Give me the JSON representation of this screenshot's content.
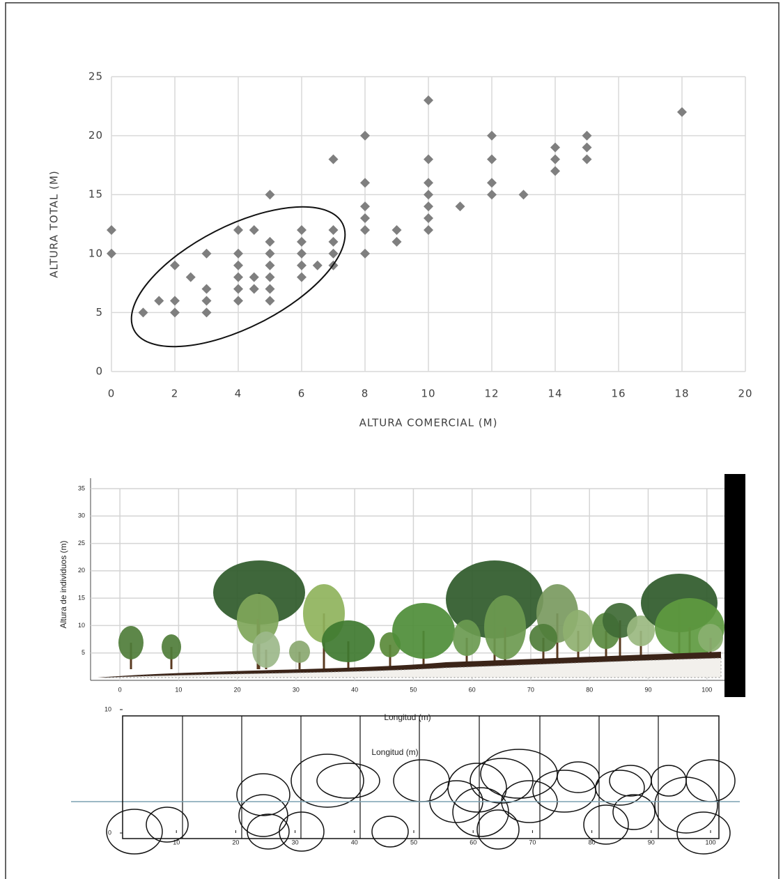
{
  "chart_data": [
    {
      "type": "scatter",
      "x_label": "ALTURA COMERCIAL (M)",
      "y_label": "ALTURA TOTAL (M)",
      "x": [
        0,
        0,
        1,
        1.5,
        2,
        2,
        2,
        2.5,
        3,
        3,
        3,
        3,
        4,
        4,
        4,
        4,
        4,
        4,
        4.5,
        4.5,
        4.5,
        5,
        5,
        5,
        5,
        5,
        5,
        5,
        6,
        6,
        6,
        6,
        6,
        6.5,
        7,
        7,
        7,
        7,
        7,
        8,
        8,
        8,
        8,
        8,
        8,
        9,
        9,
        10,
        10,
        10,
        10,
        10,
        10,
        10,
        11,
        12,
        12,
        12,
        12,
        13,
        14,
        14,
        14,
        15,
        15,
        15,
        18
      ],
      "y": [
        12,
        10,
        5,
        6,
        9,
        6,
        5,
        8,
        10,
        7,
        6,
        5,
        12,
        10,
        9,
        8,
        7,
        6,
        12,
        8,
        7,
        15,
        11,
        10,
        9,
        8,
        7,
        6,
        12,
        11,
        10,
        9,
        8,
        9,
        18,
        12,
        11,
        10,
        9,
        20,
        16,
        14,
        13,
        12,
        10,
        12,
        11,
        23,
        18,
        16,
        15,
        14,
        13,
        12,
        14,
        20,
        18,
        16,
        15,
        15,
        19,
        18,
        17,
        20,
        19,
        18,
        22
      ],
      "color": "#7f7f7f",
      "xlim": [
        0,
        20
      ],
      "ylim": [
        0,
        25
      ],
      "xticks": [
        0,
        2,
        4,
        6,
        8,
        10,
        12,
        14,
        16,
        18,
        20
      ],
      "yticks": [
        0,
        5,
        10,
        15,
        20,
        25
      ],
      "grid": true
    },
    {
      "type": "profile",
      "x_label": "Longitud (m)",
      "y_label": "Altura de individuos (m)",
      "xlim": [
        -5,
        103
      ],
      "ylim": [
        0,
        35
      ],
      "xticks": [
        0,
        10,
        20,
        30,
        40,
        50,
        60,
        70,
        80,
        90,
        100
      ],
      "yticks": [
        5,
        10,
        15,
        20,
        25,
        30,
        35
      ],
      "grid": true
    },
    {
      "type": "plan",
      "title": "Longitud (m)",
      "xlim": [
        0,
        100
      ],
      "ylim": [
        0,
        10
      ],
      "xticks": [
        10,
        20,
        30,
        40,
        50,
        60,
        70,
        80,
        90,
        100
      ],
      "yticks": [
        0,
        10
      ],
      "grid": false
    }
  ]
}
